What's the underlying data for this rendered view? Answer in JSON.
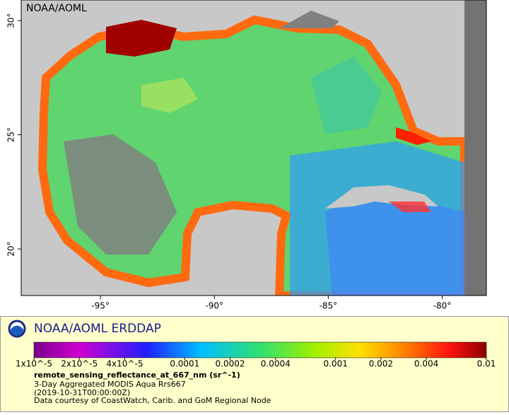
{
  "map": {
    "corner_label": "NOAA/AOML",
    "xlim": [
      -98.48,
      -78.06
    ],
    "ylim": [
      17.96,
      30.9
    ],
    "xticks": [
      {
        "value": -95,
        "label": "-95°"
      },
      {
        "value": -90,
        "label": "-90°"
      },
      {
        "value": -85,
        "label": "-85°"
      },
      {
        "value": -80,
        "label": "-80°"
      }
    ],
    "yticks": [
      {
        "value": 20,
        "label": "20°"
      },
      {
        "value": 25,
        "label": "25°"
      },
      {
        "value": 30,
        "label": "30°"
      }
    ]
  },
  "legend": {
    "title": "NOAA/AOML ERDDAP",
    "colorbar": {
      "scale": "log",
      "lim": [
        1e-05,
        0.01
      ],
      "ticks": [
        {
          "value": 1e-05,
          "label": "1x10^-5"
        },
        {
          "value": 2e-05,
          "label": "2x10^-5"
        },
        {
          "value": 4e-05,
          "label": "4x10^-5"
        },
        {
          "value": 0.0001,
          "label": "0.0001"
        },
        {
          "value": 0.0002,
          "label": "0.0002"
        },
        {
          "value": 0.0004,
          "label": "0.0004"
        },
        {
          "value": 0.001,
          "label": "0.001"
        },
        {
          "value": 0.002,
          "label": "0.002"
        },
        {
          "value": 0.004,
          "label": "0.004"
        },
        {
          "value": 0.01,
          "label": "0.01"
        }
      ]
    },
    "variable": "remote_sensing_reflectance_at_667_nm (sr^-1)",
    "dataset": "3-Day Aggregated MODIS Aqua Rrs667",
    "time": "(2019-10-31T00:00:00Z)",
    "credit": "Data courtesy of CoastWatch, Carib. and GoM Regional Node"
  }
}
